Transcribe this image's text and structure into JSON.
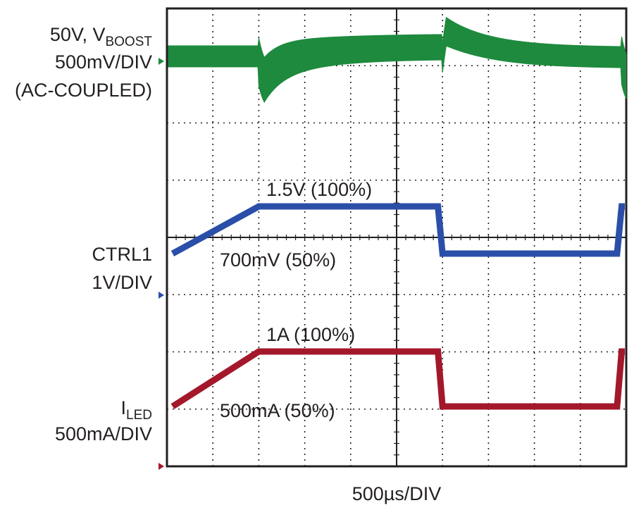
{
  "chart_data": {
    "type": "line",
    "title": "",
    "xlabel": "500µs/DIV",
    "grid": true,
    "divisions": {
      "x": 10,
      "y": 8
    },
    "x_unit": "µs",
    "x_range": [
      0,
      5000
    ],
    "transitions_us": [
      1000,
      4900
    ],
    "channels": [
      {
        "label_lines": [
          "50V, V",
          "BOOST",
          "500mV/DIV",
          "(AC-COUPLED)"
        ],
        "coupling": "AC",
        "scale": "500mV/DIV",
        "color": "#1e8a3e",
        "note": "50V boost output ripple, dips at dimming step-up, overshoots at step-down"
      },
      {
        "label_lines": [
          "CTRL1",
          "1V/DIV"
        ],
        "scale": "1V/DIV",
        "color": "#2b4fa8",
        "levels": {
          "high_label": "1.5V (100%)",
          "low_label": "700mV (50%)",
          "high": 1.5,
          "low": 0.7
        },
        "pattern_us": [
          {
            "t": 0,
            "v": 0.7
          },
          {
            "t": 1000,
            "v": 1.5
          },
          {
            "t": 2950,
            "v": 1.5
          },
          {
            "t": 3000,
            "v": 0.7
          },
          {
            "t": 4900,
            "v": 0.7
          },
          {
            "t": 4950,
            "v": 1.5
          }
        ]
      },
      {
        "label_lines": [
          "I",
          "LED",
          "500mA/DIV"
        ],
        "scale": "500mA/DIV",
        "color": "#a3182b",
        "levels": {
          "high_label": "1A (100%)",
          "low_label": "500mA (50%)",
          "high": 1.0,
          "low": 0.5
        },
        "pattern_us": [
          {
            "t": 0,
            "v": 0.5
          },
          {
            "t": 1000,
            "v": 1.0
          },
          {
            "t": 2950,
            "v": 1.0
          },
          {
            "t": 3000,
            "v": 0.5
          },
          {
            "t": 4900,
            "v": 0.5
          },
          {
            "t": 4950,
            "v": 1.0
          }
        ]
      }
    ]
  },
  "colors": {
    "grid": "#231f20",
    "text": "#231f20",
    "green": "#1e8a3e",
    "blue": "#2b4fa8",
    "red": "#a3182b"
  }
}
